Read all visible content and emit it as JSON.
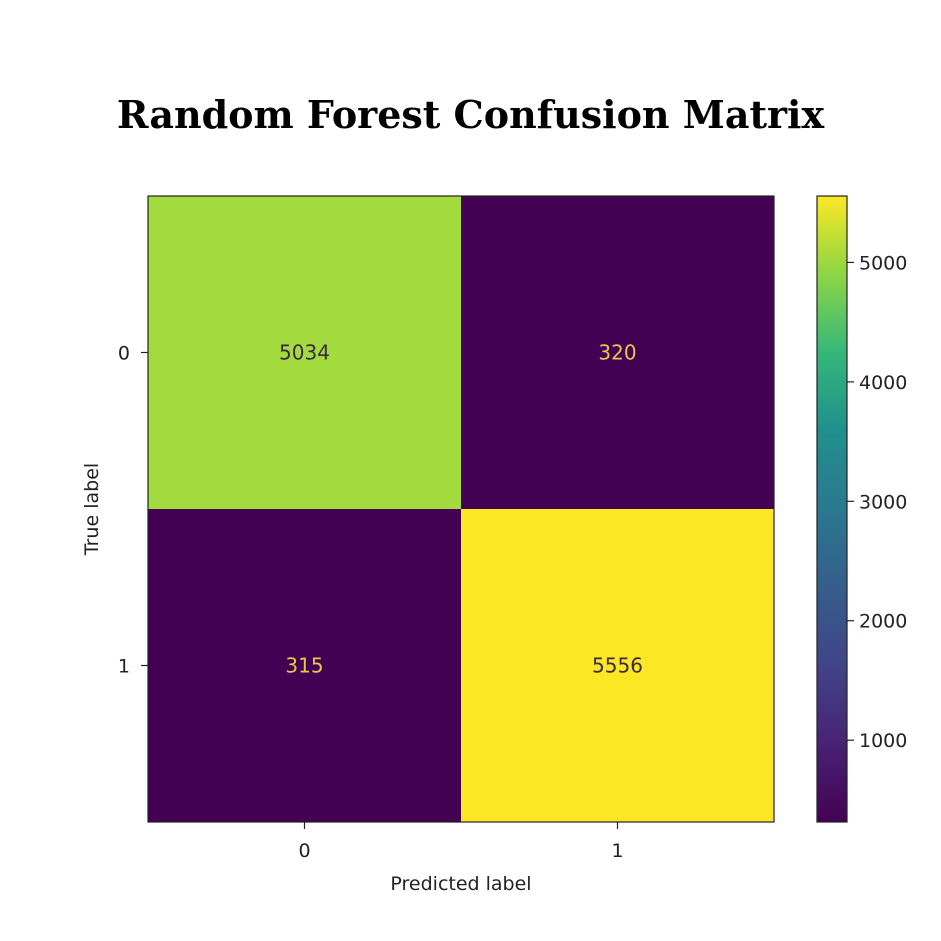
{
  "chart_data": {
    "type": "heatmap",
    "title": "Random Forest Confusion Matrix",
    "xlabel": "Predicted label",
    "ylabel": "True label",
    "x_categories": [
      "0",
      "1"
    ],
    "y_categories": [
      "0",
      "1"
    ],
    "values": [
      [
        5034,
        320
      ],
      [
        315,
        5556
      ]
    ],
    "colormap": "viridis",
    "colorbar": {
      "range": [
        315,
        5556
      ],
      "ticks": [
        1000,
        2000,
        3000,
        4000,
        5000
      ],
      "tick_labels": [
        "1000",
        "2000",
        "3000",
        "4000",
        "5000"
      ]
    },
    "colors": {
      "low": "#440154",
      "high": "#fde725",
      "dark_text": "#3b2a46",
      "light_text": "#e6c84a"
    }
  }
}
